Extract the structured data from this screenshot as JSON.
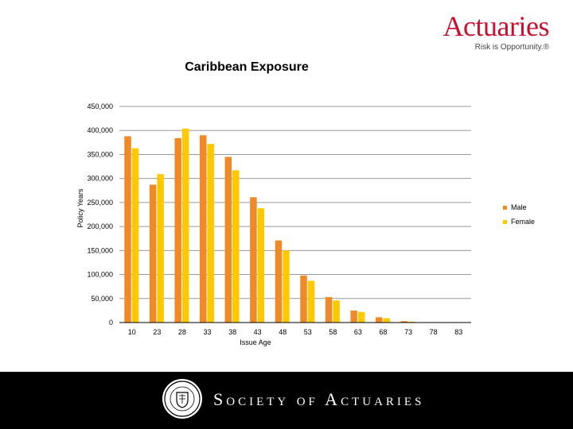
{
  "logo": {
    "name": "Actuaries",
    "tagline": "Risk is Opportunity.®"
  },
  "chart_data": {
    "type": "bar",
    "title": "Caribbean Exposure",
    "xlabel": "Issue Age",
    "ylabel": "Policy Years",
    "categories": [
      "10",
      "23",
      "28",
      "33",
      "38",
      "43",
      "48",
      "53",
      "58",
      "63",
      "68",
      "73",
      "78",
      "83"
    ],
    "series": [
      {
        "name": "Male",
        "color": "#f08a28",
        "values": [
          388000,
          287000,
          384000,
          390000,
          345000,
          261000,
          171000,
          98000,
          53000,
          25000,
          11000,
          3000,
          700,
          200
        ]
      },
      {
        "name": "Female",
        "color": "#ffc800",
        "values": [
          363000,
          309000,
          404000,
          372000,
          317000,
          238000,
          150000,
          87000,
          46000,
          22000,
          9000,
          2000,
          500,
          100
        ]
      }
    ],
    "ylim": [
      0,
      450000
    ],
    "yticks": [
      "0",
      "50,000",
      "100,000",
      "150,000",
      "200,000",
      "250,000",
      "300,000",
      "350,000",
      "400,000",
      "450,000"
    ],
    "ytick_values": [
      0,
      50000,
      100000,
      150000,
      200000,
      250000,
      300000,
      350000,
      400000,
      450000
    ],
    "grid": true,
    "legend": "right"
  },
  "footer": {
    "organization": "Society of Actuaries",
    "seal_icon": "society-seal-icon",
    "background": "#000000"
  }
}
